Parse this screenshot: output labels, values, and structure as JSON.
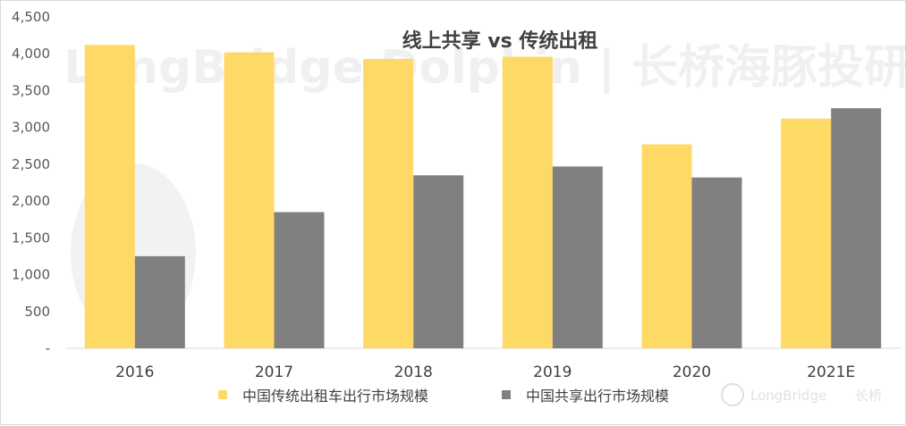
{
  "chart_data": {
    "type": "bar",
    "title": "线上共享 vs 传统出租",
    "categories": [
      "2016",
      "2017",
      "2018",
      "2019",
      "2020",
      "2021E"
    ],
    "series": [
      {
        "name": "中国传统出租车出行市场规模",
        "color": "#ffd966",
        "values": [
          4120,
          4020,
          3930,
          3960,
          2770,
          3120
        ]
      },
      {
        "name": "中国共享出行市场规模",
        "color": "#808080",
        "values": [
          1250,
          1850,
          2350,
          2470,
          2320,
          3260
        ]
      }
    ],
    "ylim": [
      0,
      4500
    ],
    "yticks": [
      0,
      500,
      1000,
      1500,
      2000,
      2500,
      3000,
      3500,
      4000,
      4500
    ],
    "ytick_labels": [
      "-",
      "500",
      "1,000",
      "1,500",
      "2,000",
      "2,500",
      "3,000",
      "3,500",
      "4,000",
      "4,500"
    ],
    "xlabel": "",
    "ylabel": "",
    "grid": false,
    "legend_position": "bottom"
  },
  "watermark": {
    "main": "LongBridge Dolphin | 长桥海豚投研",
    "corner_brand": "LongBridge",
    "corner_cn": "长桥"
  }
}
